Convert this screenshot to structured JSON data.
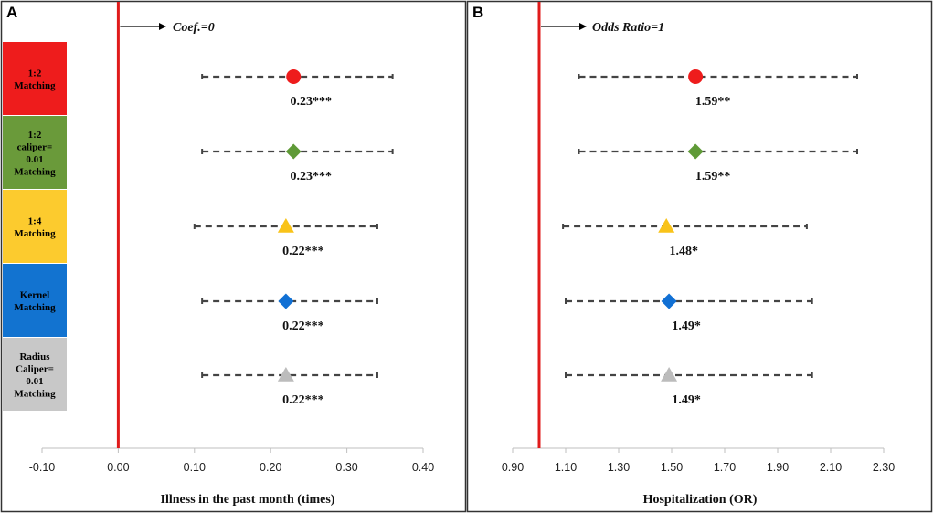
{
  "colors": {
    "reference_line": "#e01b1b",
    "ci_line": "#444444",
    "frame": "#333333"
  },
  "methods": [
    {
      "label": "1:2\nMatching",
      "color": "#ee1c1c",
      "text_color": "#000000",
      "marker": "circle",
      "marker_color": "#ee1c1c"
    },
    {
      "label": "1:2\ncaliper=\n0.01\nMatching",
      "color": "#6a9a3a",
      "text_color": "#000000",
      "marker": "diamond",
      "marker_color": "#5f9a37"
    },
    {
      "label": "1:4\nMatching",
      "color": "#fccb2e",
      "text_color": "#000000",
      "marker": "triangle",
      "marker_color": "#f9c319"
    },
    {
      "label": "Kernel\nMatching",
      "color": "#1273d0",
      "text_color": "#000000",
      "marker": "diamond",
      "marker_color": "#1170d4"
    },
    {
      "label": "Radius\nCaliper=\n0.01\nMatching",
      "color": "#c8c8c8",
      "text_color": "#000000",
      "marker": "triangle",
      "marker_color": "#bcbcbc"
    }
  ],
  "chart_data": [
    {
      "type": "forest",
      "panel_label": "A",
      "xlabel": "Illness in the past month (times)",
      "reference": {
        "value": 0.0,
        "label": "Coef.=0"
      },
      "xlim": [
        -0.1,
        0.4
      ],
      "xticks": [
        "-0.10",
        "0.00",
        "0.10",
        "0.20",
        "0.30",
        "0.40"
      ],
      "xtick_values": [
        -0.1,
        0.0,
        0.1,
        0.2,
        0.3,
        0.4
      ],
      "estimates": [
        {
          "method": "1:2 Matching",
          "value": 0.23,
          "ci": [
            0.11,
            0.36
          ],
          "label": "0.23***"
        },
        {
          "method": "1:2 caliper=0.01 Matching",
          "value": 0.23,
          "ci": [
            0.11,
            0.36
          ],
          "label": "0.23***"
        },
        {
          "method": "1:4 Matching",
          "value": 0.22,
          "ci": [
            0.1,
            0.34
          ],
          "label": "0.22***"
        },
        {
          "method": "Kernel Matching",
          "value": 0.22,
          "ci": [
            0.11,
            0.34
          ],
          "label": "0.22***"
        },
        {
          "method": "Radius Caliper=0.01 Matching",
          "value": 0.22,
          "ci": [
            0.11,
            0.34
          ],
          "label": "0.22***"
        }
      ]
    },
    {
      "type": "forest",
      "panel_label": "B",
      "xlabel": "Hospitalization (OR)",
      "reference": {
        "value": 1.0,
        "label": "Odds Ratio=1"
      },
      "xlim": [
        0.9,
        2.3
      ],
      "xticks": [
        "0.90",
        "1.10",
        "1.30",
        "1.50",
        "1.70",
        "1.90",
        "2.10",
        "2.30"
      ],
      "xtick_values": [
        0.9,
        1.1,
        1.3,
        1.5,
        1.7,
        1.9,
        2.1,
        2.3
      ],
      "estimates": [
        {
          "method": "1:2 Matching",
          "value": 1.59,
          "ci": [
            1.15,
            2.2
          ],
          "label": "1.59**"
        },
        {
          "method": "1:2 caliper=0.01 Matching",
          "value": 1.59,
          "ci": [
            1.15,
            2.2
          ],
          "label": "1.59**"
        },
        {
          "method": "1:4 Matching",
          "value": 1.48,
          "ci": [
            1.09,
            2.01
          ],
          "label": "1.48*"
        },
        {
          "method": "Kernel Matching",
          "value": 1.49,
          "ci": [
            1.1,
            2.03
          ],
          "label": "1.49*"
        },
        {
          "method": "Radius Caliper=0.01 Matching",
          "value": 1.49,
          "ci": [
            1.1,
            2.03
          ],
          "label": "1.49*"
        }
      ]
    }
  ]
}
